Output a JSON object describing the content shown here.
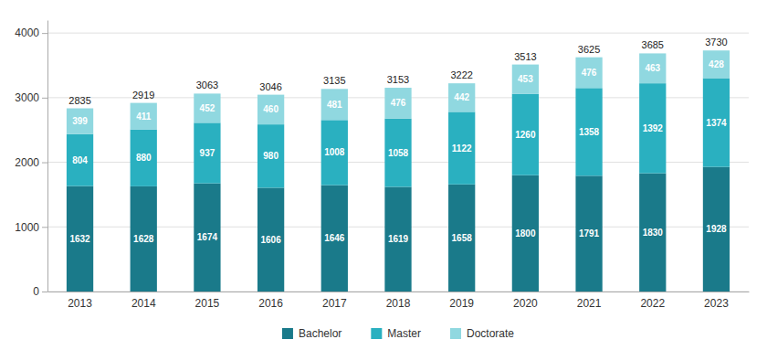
{
  "chart_data": {
    "type": "bar",
    "stacked": true,
    "categories": [
      "2013",
      "2014",
      "2015",
      "2016",
      "2017",
      "2018",
      "2019",
      "2020",
      "2021",
      "2022",
      "2023"
    ],
    "series": [
      {
        "name": "Bachelor",
        "color": "#1a7a8a",
        "values": [
          1632,
          1628,
          1674,
          1606,
          1646,
          1619,
          1658,
          1800,
          1791,
          1830,
          1928
        ]
      },
      {
        "name": "Master",
        "color": "#2ab0c0",
        "values": [
          804,
          880,
          937,
          980,
          1008,
          1058,
          1122,
          1260,
          1358,
          1392,
          1374
        ]
      },
      {
        "name": "Doctorate",
        "color": "#90d8e0",
        "values": [
          399,
          411,
          452,
          460,
          481,
          476,
          442,
          453,
          476,
          463,
          428
        ]
      }
    ],
    "totals": [
      2835,
      2919,
      3063,
      3046,
      3135,
      3153,
      3222,
      3513,
      3625,
      3685,
      3730
    ],
    "ylim": [
      0,
      4200
    ],
    "yticks": [
      0,
      1000,
      2000,
      3000,
      4000
    ],
    "grid": true,
    "data_labels": true,
    "legend": "bottom"
  }
}
